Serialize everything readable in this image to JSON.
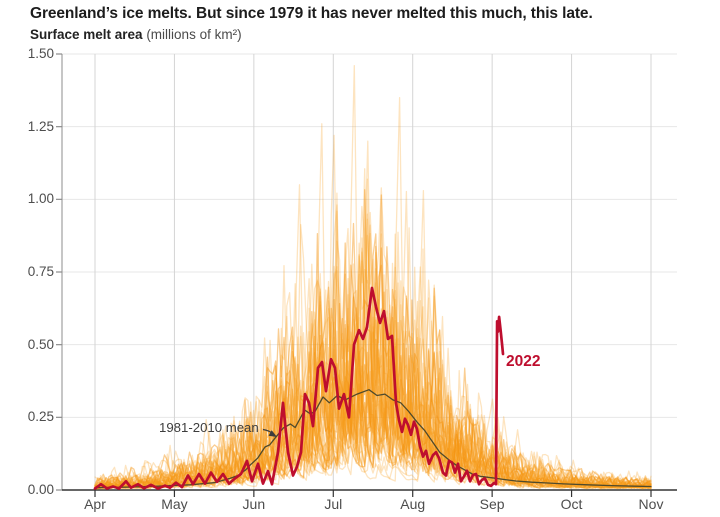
{
  "chart_data": {
    "type": "line",
    "title": "Greenland’s ice melts. But since 1979 it has never melted this much, this late.",
    "subtitle_bold": "Surface melt area",
    "subtitle_units": " (millions of km²)",
    "x_axis": {
      "months": [
        "Apr",
        "May",
        "Jun",
        "Jul",
        "Aug",
        "Sep",
        "Oct",
        "Nov"
      ]
    },
    "y_axis": {
      "min": 0,
      "max": 1.5,
      "ticks": [
        {
          "label": "0.00",
          "value": 0.0
        },
        {
          "label": "0.25",
          "value": 0.25
        },
        {
          "label": "0.50",
          "value": 0.5
        },
        {
          "label": "0.75",
          "value": 0.75
        },
        {
          "label": "1.00",
          "value": 1.0
        },
        {
          "label": "1.25",
          "value": 1.25
        },
        {
          "label": "1.50",
          "value": 1.5
        }
      ]
    },
    "annotations": {
      "mean_label": "1981-2010 mean",
      "series_label": "2022"
    },
    "colors": {
      "red_2022": "#be0e2e",
      "mean_line": "#4f4a2c",
      "faint_year": "rgba(247,158,28,0.28)",
      "faint_year_strong": "rgba(243,146,16,0.45)",
      "grid_h": "#e7e7e7",
      "grid_v": "#d4d4d4",
      "axis_y": "#8c8c8c",
      "axis_x": "#333333",
      "annotation_text": "#3d3d3d"
    },
    "series": [
      {
        "name": "2022",
        "color": "#be0e2e",
        "points": [
          [
            0.0,
            0.005
          ],
          [
            0.076,
            0.02
          ],
          [
            0.151,
            0.005
          ],
          [
            0.227,
            0.012
          ],
          [
            0.302,
            0.005
          ],
          [
            0.39,
            0.03
          ],
          [
            0.453,
            0.008
          ],
          [
            0.541,
            0.02
          ],
          [
            0.617,
            0.006
          ],
          [
            0.705,
            0.018
          ],
          [
            0.793,
            0.005
          ],
          [
            0.881,
            0.015
          ],
          [
            0.944,
            0.008
          ],
          [
            1.02,
            0.025
          ],
          [
            1.095,
            0.01
          ],
          [
            1.171,
            0.05
          ],
          [
            1.234,
            0.02
          ],
          [
            1.309,
            0.055
          ],
          [
            1.385,
            0.022
          ],
          [
            1.46,
            0.06
          ],
          [
            1.536,
            0.028
          ],
          [
            1.611,
            0.055
          ],
          [
            1.687,
            0.022
          ],
          [
            1.762,
            0.04
          ],
          [
            1.838,
            0.055
          ],
          [
            1.914,
            0.1
          ],
          [
            1.977,
            0.03
          ],
          [
            2.052,
            0.09
          ],
          [
            2.115,
            0.022
          ],
          [
            2.178,
            0.065
          ],
          [
            2.228,
            0.02
          ],
          [
            2.304,
            0.13
          ],
          [
            2.367,
            0.3
          ],
          [
            2.43,
            0.13
          ],
          [
            2.493,
            0.05
          ],
          [
            2.543,
            0.08
          ],
          [
            2.594,
            0.13
          ],
          [
            2.644,
            0.33
          ],
          [
            2.694,
            0.3
          ],
          [
            2.745,
            0.22
          ],
          [
            2.808,
            0.42
          ],
          [
            2.858,
            0.44
          ],
          [
            2.908,
            0.34
          ],
          [
            2.971,
            0.45
          ],
          [
            3.022,
            0.42
          ],
          [
            3.072,
            0.28
          ],
          [
            3.135,
            0.33
          ],
          [
            3.198,
            0.25
          ],
          [
            3.261,
            0.5
          ],
          [
            3.324,
            0.55
          ],
          [
            3.374,
            0.52
          ],
          [
            3.425,
            0.56
          ],
          [
            3.488,
            0.695
          ],
          [
            3.538,
            0.63
          ],
          [
            3.588,
            0.575
          ],
          [
            3.639,
            0.615
          ],
          [
            3.689,
            0.52
          ],
          [
            3.739,
            0.53
          ],
          [
            3.789,
            0.3
          ],
          [
            3.827,
            0.24
          ],
          [
            3.865,
            0.2
          ],
          [
            3.903,
            0.245
          ],
          [
            3.94,
            0.225
          ],
          [
            3.978,
            0.19
          ],
          [
            4.016,
            0.235
          ],
          [
            4.054,
            0.21
          ],
          [
            4.092,
            0.15
          ],
          [
            4.129,
            0.115
          ],
          [
            4.167,
            0.135
          ],
          [
            4.205,
            0.09
          ],
          [
            4.255,
            0.12
          ],
          [
            4.293,
            0.13
          ],
          [
            4.331,
            0.11
          ],
          [
            4.381,
            0.06
          ],
          [
            4.419,
            0.05
          ],
          [
            4.457,
            0.1
          ],
          [
            4.495,
            0.095
          ],
          [
            4.532,
            0.06
          ],
          [
            4.57,
            0.09
          ],
          [
            4.608,
            0.03
          ],
          [
            4.646,
            0.047
          ],
          [
            4.684,
            0.066
          ],
          [
            4.721,
            0.03
          ],
          [
            4.759,
            0.052
          ],
          [
            4.797,
            0.055
          ],
          [
            4.835,
            0.02
          ],
          [
            4.872,
            0.035
          ],
          [
            4.91,
            0.04
          ],
          [
            4.948,
            0.018
          ],
          [
            4.986,
            0.014
          ],
          [
            5.023,
            0.024
          ],
          [
            5.049,
            0.02
          ],
          [
            5.055,
            0.3
          ],
          [
            5.062,
            0.58
          ],
          [
            5.074,
            0.545
          ],
          [
            5.087,
            0.596
          ],
          [
            5.106,
            0.55
          ],
          [
            5.125,
            0.5
          ],
          [
            5.137,
            0.468
          ]
        ]
      },
      {
        "name": "1981-2010 mean",
        "color": "#4f4a2c",
        "points": [
          [
            0.0,
            0.008
          ],
          [
            0.4,
            0.01
          ],
          [
            0.8,
            0.013
          ],
          [
            1.2,
            0.018
          ],
          [
            1.5,
            0.025
          ],
          [
            1.7,
            0.04
          ],
          [
            1.8,
            0.05
          ],
          [
            1.9,
            0.07
          ],
          [
            1.95,
            0.085
          ],
          [
            2.05,
            0.11
          ],
          [
            2.14,
            0.148
          ],
          [
            2.2,
            0.155
          ],
          [
            2.28,
            0.183
          ],
          [
            2.37,
            0.213
          ],
          [
            2.46,
            0.227
          ],
          [
            2.52,
            0.215
          ],
          [
            2.64,
            0.275
          ],
          [
            2.71,
            0.262
          ],
          [
            2.77,
            0.27
          ],
          [
            2.87,
            0.32
          ],
          [
            2.95,
            0.3
          ],
          [
            3.05,
            0.325
          ],
          [
            3.15,
            0.31
          ],
          [
            3.3,
            0.33
          ],
          [
            3.45,
            0.345
          ],
          [
            3.55,
            0.325
          ],
          [
            3.65,
            0.33
          ],
          [
            3.75,
            0.31
          ],
          [
            3.85,
            0.3
          ],
          [
            3.95,
            0.27
          ],
          [
            4.05,
            0.235
          ],
          [
            4.15,
            0.205
          ],
          [
            4.25,
            0.165
          ],
          [
            4.34,
            0.13
          ],
          [
            4.45,
            0.105
          ],
          [
            4.55,
            0.085
          ],
          [
            4.65,
            0.07
          ],
          [
            4.75,
            0.055
          ],
          [
            4.85,
            0.047
          ],
          [
            5.0,
            0.042
          ],
          [
            5.15,
            0.036
          ],
          [
            5.3,
            0.031
          ],
          [
            5.5,
            0.027
          ],
          [
            5.7,
            0.024
          ],
          [
            5.9,
            0.021
          ],
          [
            6.2,
            0.018
          ],
          [
            6.5,
            0.015
          ],
          [
            6.8,
            0.013
          ],
          [
            7.0,
            0.012
          ]
        ]
      }
    ],
    "background_years": {
      "description": "Individual melt-season curves for years since 1979, drawn as faint orange lines",
      "count": 43,
      "envelope": [
        [
          0.0,
          0.03
        ],
        [
          0.3,
          0.04
        ],
        [
          0.6,
          0.05
        ],
        [
          1.0,
          0.07
        ],
        [
          1.4,
          0.1
        ],
        [
          1.8,
          0.16
        ],
        [
          2.2,
          0.28
        ],
        [
          2.6,
          0.45
        ],
        [
          3.0,
          0.6
        ],
        [
          3.3,
          0.68
        ],
        [
          3.6,
          0.65
        ],
        [
          3.9,
          0.55
        ],
        [
          4.2,
          0.42
        ],
        [
          4.5,
          0.3
        ],
        [
          4.8,
          0.2
        ],
        [
          5.1,
          0.13
        ],
        [
          5.4,
          0.09
        ],
        [
          5.8,
          0.06
        ],
        [
          6.2,
          0.045
        ],
        [
          6.6,
          0.035
        ],
        [
          7.0,
          0.03
        ]
      ],
      "notable_peaks": [
        {
          "mf": 2.58,
          "v": 1.05
        },
        {
          "mf": 2.86,
          "v": 1.26
        },
        {
          "mf": 3.27,
          "v": 1.46
        },
        {
          "mf": 3.44,
          "v": 1.2
        },
        {
          "mf": 3.84,
          "v": 1.35
        },
        {
          "mf": 4.14,
          "v": 1.03
        }
      ]
    }
  }
}
